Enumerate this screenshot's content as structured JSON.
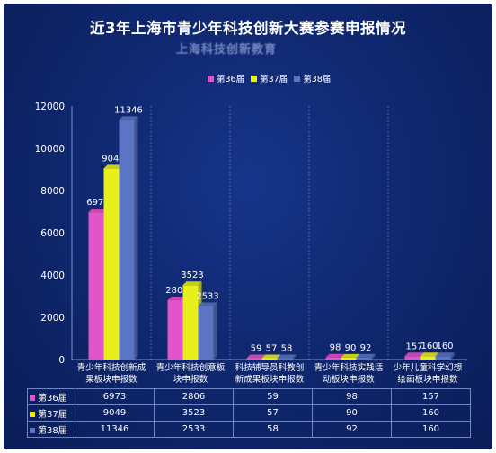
{
  "title": "近3年上海市青少年科技创新大赛参赛申报情况",
  "watermark": "上海科技创新教育",
  "chart_data": {
    "type": "bar",
    "title": "近3年上海市青少年科技创新大赛参赛申报情况",
    "categories": [
      "青少年科技创新成果板块申报数",
      "青少年科技创意板块申报数",
      "科技辅导员科教创新成果板块申报数",
      "青少年科技实践活动板块申报数",
      "少年儿童科学幻想绘画板块申报数"
    ],
    "category_lines": [
      [
        "青少年科技创新成",
        "果板块申报数"
      ],
      [
        "青少年科技创意板",
        "块申报数"
      ],
      [
        "科技辅导员科教创",
        "新成果板块申报数"
      ],
      [
        "青少年科技实践活",
        "动板块申报数"
      ],
      [
        "少年儿童科学幻想",
        "绘画板块申报数"
      ]
    ],
    "series": [
      {
        "name": "第36届",
        "color": "#e255c8",
        "values": [
          6973,
          2806,
          59,
          98,
          157
        ]
      },
      {
        "name": "第37届",
        "color": "#e8f01c",
        "values": [
          9049,
          3523,
          57,
          90,
          160
        ]
      },
      {
        "name": "第38届",
        "color": "#5b74c4",
        "values": [
          11346,
          2533,
          58,
          92,
          160
        ]
      }
    ],
    "ylim": [
      0,
      12000
    ],
    "yticks": [
      "0",
      "2000",
      "4000",
      "6000",
      "8000",
      "10000",
      "12000"
    ],
    "legend_position": "top-center",
    "grid": false
  }
}
